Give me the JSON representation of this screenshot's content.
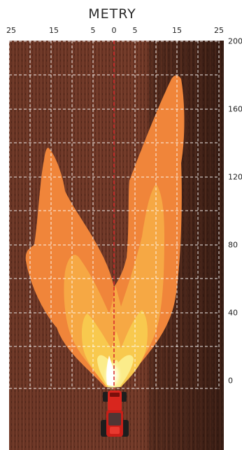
{
  "title": "METRY",
  "x_axis": {
    "ticks": [
      "25",
      "15",
      "5",
      "0",
      "5",
      "15",
      "25"
    ],
    "values": [
      -25,
      -15,
      -5,
      0,
      5,
      15,
      25
    ],
    "range": [
      -25,
      25
    ]
  },
  "y_axis": {
    "ticks": [
      "200",
      "160",
      "120",
      "80",
      "40",
      "0"
    ],
    "values": [
      200,
      160,
      120,
      80,
      40,
      0
    ],
    "range": [
      -30,
      200
    ]
  },
  "grid": true,
  "centerline_color": "#d7262b",
  "colors": {
    "soil": "#6b3726",
    "grid": "#ffffff",
    "outer_plume": "#f0853a",
    "mid_plume": "#f6a844",
    "inner_plume": "#f8c94e",
    "core_plume": "#fbec8a",
    "tractor": "#d8261e"
  },
  "icons": [
    "tractor-icon"
  ]
}
